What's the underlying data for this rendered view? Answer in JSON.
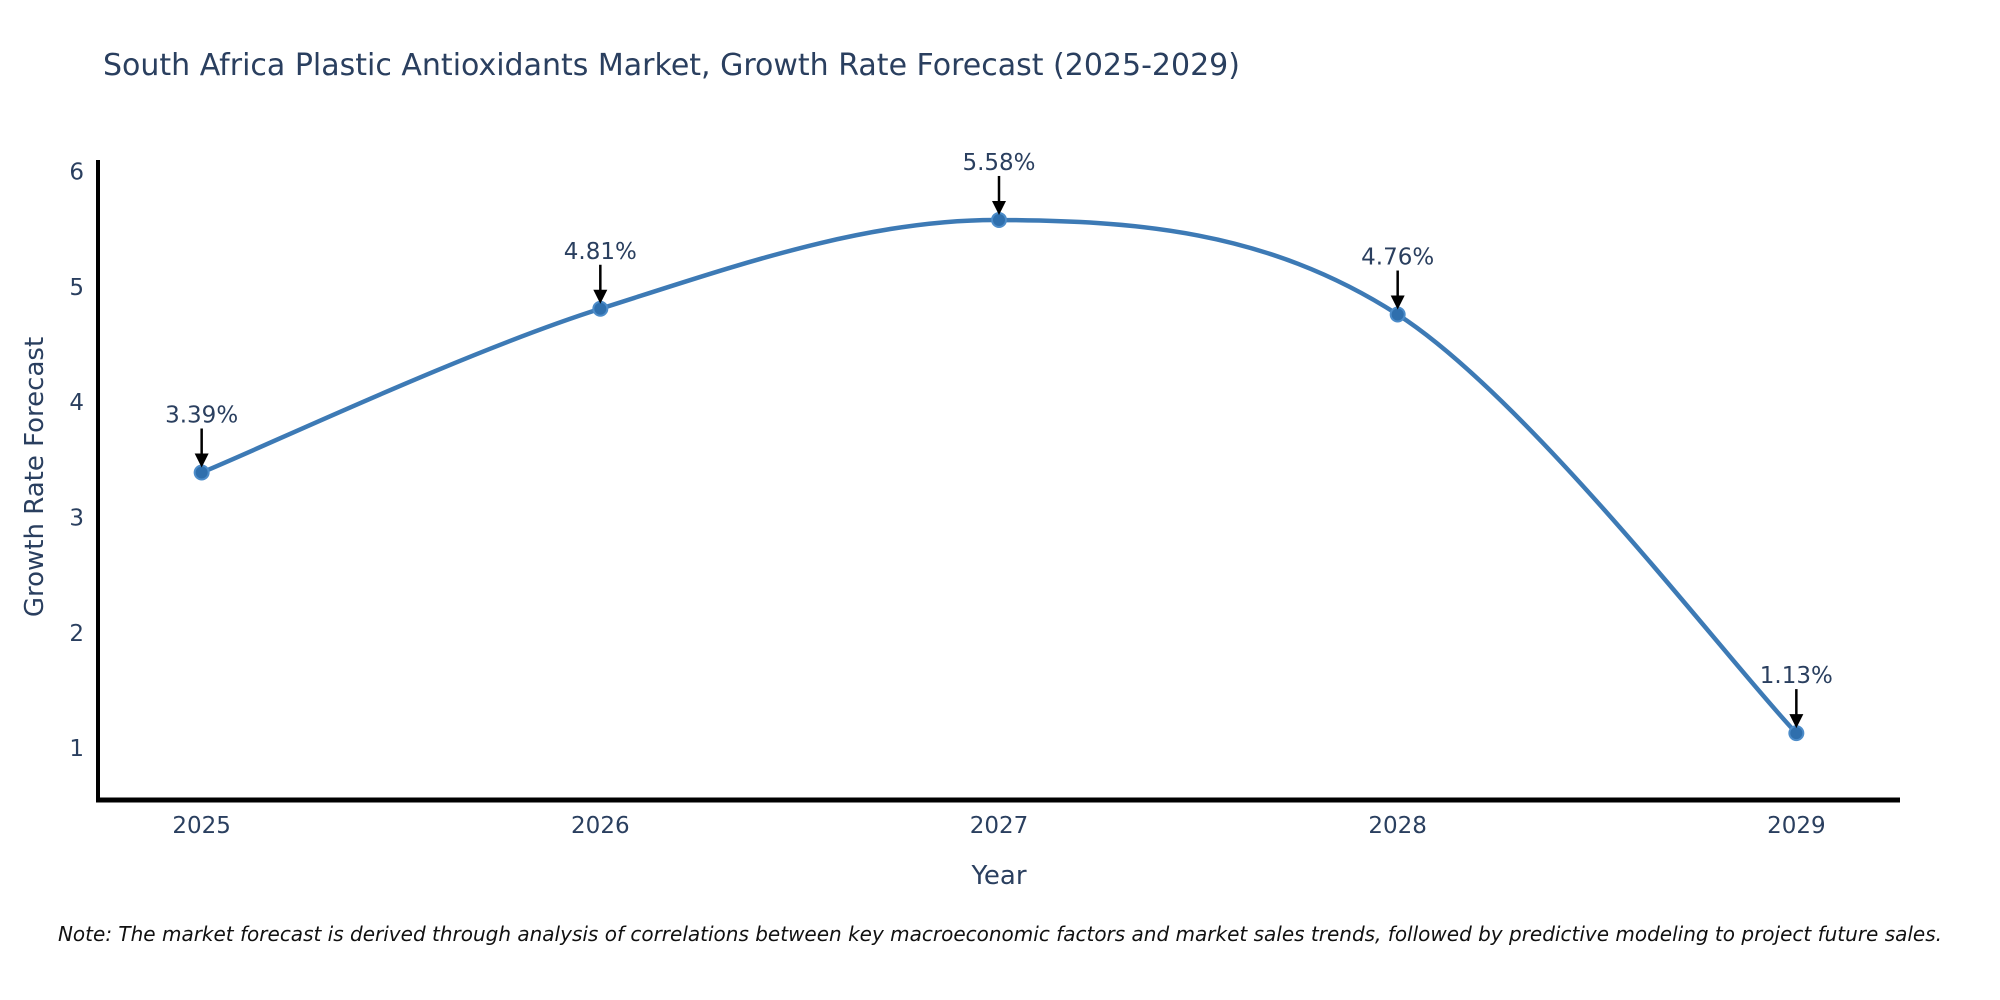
{
  "footnote": "Note: The market forecast is derived through analysis of correlations between key macroeconomic factors and market sales trends, followed by predictive modeling to project future sales.",
  "chart_data": {
    "type": "line",
    "title": "South Africa Plastic Antioxidants Market, Growth Rate Forecast (2025-2029)",
    "xlabel": "Year",
    "ylabel": "Growth Rate Forecast",
    "x": [
      2025,
      2026,
      2027,
      2028,
      2029
    ],
    "values": [
      3.39,
      4.81,
      5.58,
      4.76,
      1.13
    ],
    "point_labels": [
      "3.39%",
      "4.81%",
      "5.58%",
      "4.76%",
      "1.13%"
    ],
    "xticks": [
      "2025",
      "2026",
      "2027",
      "2028",
      "2029"
    ],
    "yticks": [
      1,
      2,
      3,
      4,
      5,
      6
    ],
    "xlim": [
      2024.74,
      2029.26
    ],
    "ylim": [
      0.55,
      6.1
    ],
    "line_shape": "spline",
    "grid": false,
    "legend_position": "none",
    "colors": {
      "line": "#3d7ab5",
      "marker_fill": "#2f6fad",
      "marker_edge": "#4c8cc9",
      "annotation_arrow": "#000000",
      "axis_line": "#000000",
      "title_text": "#2a3f5f",
      "tick_text": "#2a3f5f",
      "annotation_text": "#2a3f5f",
      "note_text": "#111111"
    }
  }
}
